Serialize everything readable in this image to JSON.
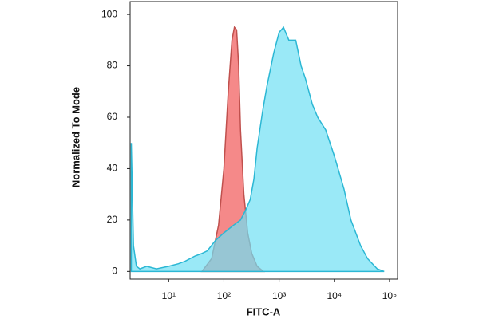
{
  "chart_data": {
    "type": "area",
    "xlabel": "FITC-A",
    "ylabel": "Normalized To Mode",
    "xscale": "log",
    "xlim": [
      2,
      140000
    ],
    "ylim": [
      -3,
      105
    ],
    "xticks": [
      {
        "value": 10,
        "label": "10¹"
      },
      {
        "value": 100,
        "label": "10²"
      },
      {
        "value": 1000,
        "label": "10³"
      },
      {
        "value": 10000,
        "label": "10⁴"
      },
      {
        "value": 100000,
        "label": "10⁵"
      }
    ],
    "yticks": [
      0,
      20,
      40,
      60,
      80,
      100
    ],
    "series": [
      {
        "color": "#f47c7c",
        "stroke": "#c0504d",
        "x": [
          40,
          60,
          80,
          100,
          120,
          140,
          155,
          170,
          185,
          200,
          230,
          270,
          320,
          400,
          520
        ],
        "values": [
          0,
          5,
          18,
          40,
          70,
          90,
          95,
          94,
          80,
          55,
          30,
          15,
          7,
          2,
          0
        ]
      },
      {
        "color": "#6fdff3",
        "stroke": "#2bb7d4",
        "x": [
          2.1,
          2.3,
          2.6,
          3,
          4,
          6,
          10,
          15,
          20,
          30,
          40,
          50,
          70,
          100,
          150,
          200,
          250,
          300,
          350,
          400,
          500,
          600,
          800,
          1000,
          1200,
          1500,
          2000,
          2500,
          3000,
          4000,
          5000,
          7000,
          10000,
          15000,
          20000,
          30000,
          40000,
          60000,
          80000
        ],
        "values": [
          50,
          10,
          2,
          1,
          2,
          1,
          2,
          3,
          4,
          6,
          7,
          8,
          12,
          15,
          18,
          20,
          24,
          28,
          36,
          48,
          62,
          72,
          85,
          93,
          95,
          90,
          90,
          80,
          75,
          65,
          60,
          55,
          45,
          32,
          20,
          10,
          5,
          1,
          0
        ]
      }
    ]
  }
}
